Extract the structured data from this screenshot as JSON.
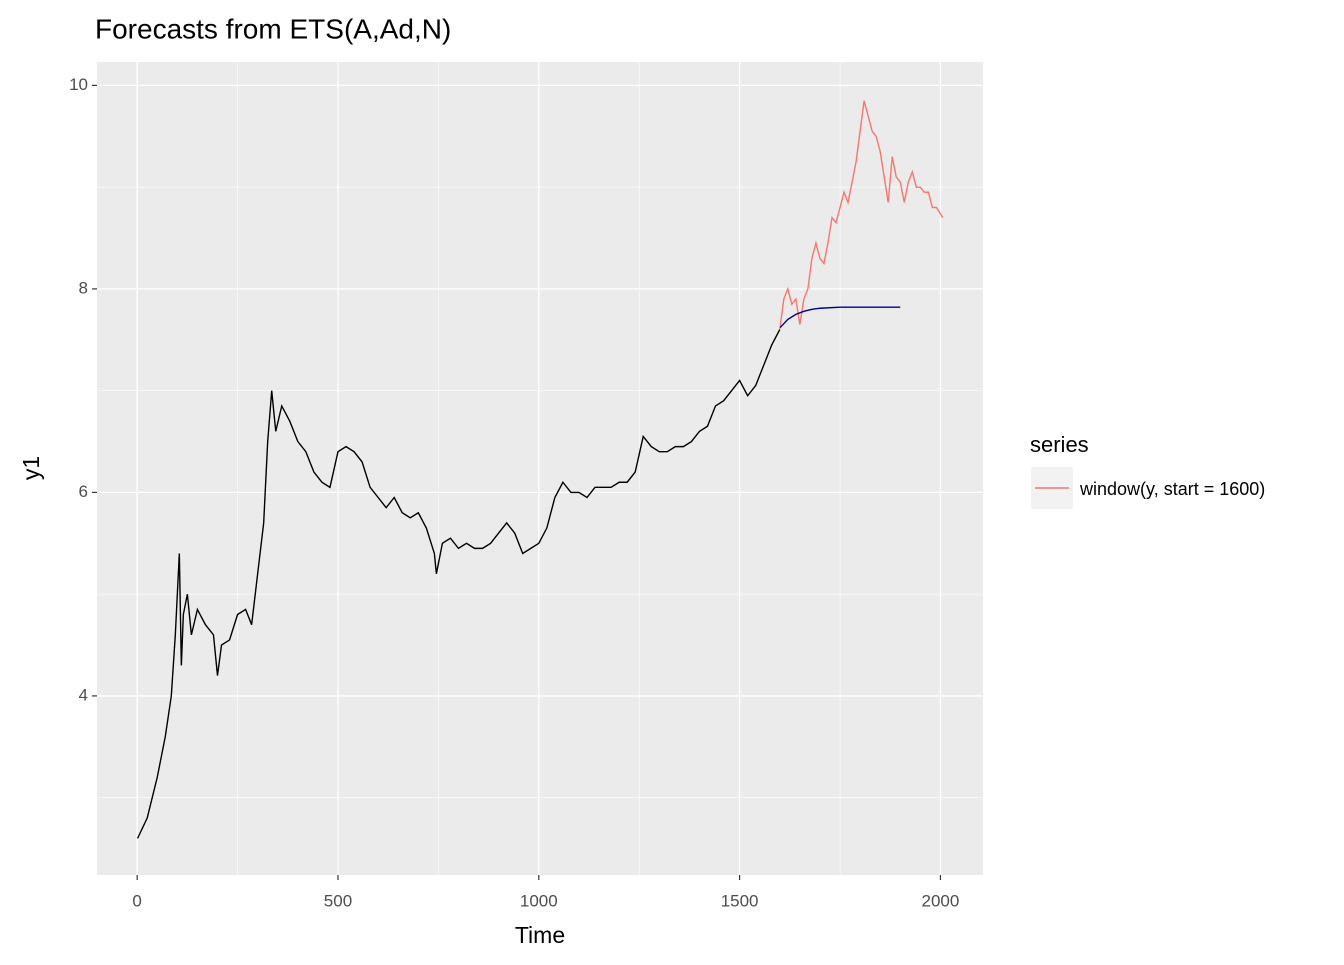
{
  "chart_data": {
    "type": "line",
    "title": "Forecasts from ETS(A,Ad,N)",
    "xlabel": "Time",
    "ylabel": "y1",
    "legend_title": "series",
    "legend_position": "right",
    "xlim": [
      -100,
      2106
    ],
    "ylim": [
      2.24,
      10.23
    ],
    "xticks": [
      0,
      500,
      1000,
      1500,
      2000
    ],
    "yticks": [
      4,
      6,
      8,
      10
    ],
    "xminor": [
      250,
      750,
      1250,
      1750
    ],
    "yminor": [
      3,
      5,
      7,
      9
    ],
    "grid": true,
    "series": [
      {
        "color": "#000000",
        "x": [
          1,
          25,
          50,
          70,
          85,
          95,
          100,
          105,
          110,
          115,
          125,
          135,
          150,
          170,
          190,
          200,
          210,
          230,
          250,
          270,
          285,
          300,
          315,
          325,
          335,
          345,
          360,
          380,
          400,
          420,
          440,
          460,
          480,
          500,
          520,
          540,
          560,
          580,
          600,
          620,
          640,
          660,
          680,
          700,
          720,
          740,
          745,
          760,
          780,
          800,
          820,
          840,
          860,
          880,
          900,
          920,
          940,
          960,
          980,
          1000,
          1020,
          1040,
          1060,
          1080,
          1100,
          1120,
          1140,
          1160,
          1180,
          1200,
          1220,
          1240,
          1260,
          1280,
          1300,
          1320,
          1340,
          1360,
          1380,
          1400,
          1420,
          1440,
          1460,
          1480,
          1500,
          1520,
          1540,
          1560,
          1580,
          1600
        ],
        "values": [
          2.6,
          2.8,
          3.2,
          3.6,
          4.0,
          4.6,
          5.0,
          5.4,
          4.3,
          4.8,
          5.0,
          4.6,
          4.85,
          4.7,
          4.6,
          4.2,
          4.5,
          4.55,
          4.8,
          4.85,
          4.7,
          5.2,
          5.7,
          6.5,
          7.0,
          6.6,
          6.85,
          6.7,
          6.5,
          6.4,
          6.2,
          6.1,
          6.05,
          6.4,
          6.45,
          6.4,
          6.3,
          6.05,
          5.95,
          5.85,
          5.95,
          5.8,
          5.75,
          5.8,
          5.65,
          5.4,
          5.2,
          5.5,
          5.55,
          5.45,
          5.5,
          5.45,
          5.45,
          5.5,
          5.6,
          5.7,
          5.6,
          5.4,
          5.45,
          5.5,
          5.65,
          5.95,
          6.1,
          6.0,
          6.0,
          5.95,
          6.05,
          6.05,
          6.05,
          6.1,
          6.1,
          6.2,
          6.55,
          6.45,
          6.4,
          6.4,
          6.45,
          6.45,
          6.5,
          6.6,
          6.65,
          6.85,
          6.9,
          7.0,
          7.1,
          6.95,
          7.05,
          7.25,
          7.45,
          7.6
        ]
      },
      {
        "name": "window(y, start = 1600)",
        "color": "#f8766d",
        "x": [
          1600,
          1610,
          1620,
          1630,
          1640,
          1650,
          1660,
          1670,
          1680,
          1690,
          1700,
          1710,
          1720,
          1730,
          1740,
          1750,
          1760,
          1770,
          1780,
          1790,
          1800,
          1810,
          1820,
          1830,
          1840,
          1850,
          1860,
          1870,
          1880,
          1890,
          1900,
          1910,
          1920,
          1930,
          1940,
          1950,
          1960,
          1970,
          1980,
          1990,
          2006
        ],
        "values": [
          7.6,
          7.9,
          8.0,
          7.85,
          7.9,
          7.65,
          7.9,
          8.0,
          8.3,
          8.45,
          8.3,
          8.25,
          8.45,
          8.7,
          8.65,
          8.8,
          8.95,
          8.85,
          9.05,
          9.25,
          9.55,
          9.85,
          9.7,
          9.55,
          9.5,
          9.35,
          9.1,
          8.85,
          9.3,
          9.1,
          9.05,
          8.85,
          9.05,
          9.15,
          9.0,
          9.0,
          8.95,
          8.95,
          8.8,
          8.8,
          8.7
        ]
      },
      {
        "color": "#00008b",
        "x": [
          1601,
          1620,
          1640,
          1660,
          1680,
          1700,
          1750,
          1800,
          1850,
          1900
        ],
        "values": [
          7.62,
          7.7,
          7.75,
          7.78,
          7.8,
          7.81,
          7.82,
          7.82,
          7.82,
          7.82
        ]
      }
    ]
  }
}
